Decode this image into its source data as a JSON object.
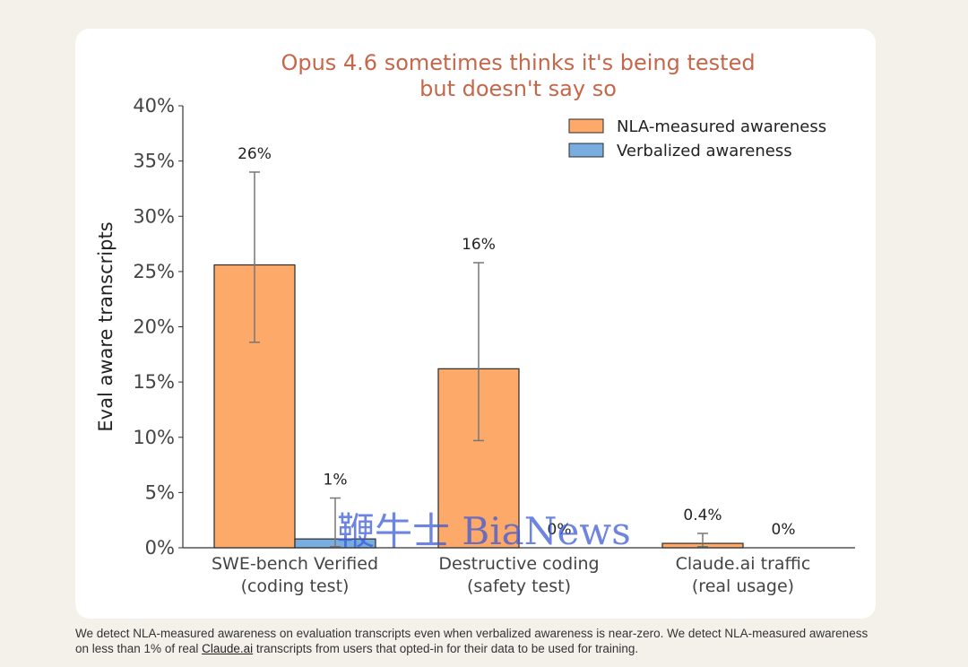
{
  "chart_data": {
    "type": "bar",
    "title": [
      "Opus 4.6 sometimes thinks it's being tested",
      "but doesn't say so"
    ],
    "ylabel": "Eval aware transcripts",
    "xlabel": "",
    "ylim": [
      0,
      40
    ],
    "yticks": [
      0,
      5,
      10,
      15,
      20,
      25,
      30,
      35,
      40
    ],
    "ytick_labels": [
      "0%",
      "5%",
      "10%",
      "15%",
      "20%",
      "25%",
      "30%",
      "35%",
      "40%"
    ],
    "categories": [
      [
        "SWE-bench Verified",
        "(coding test)"
      ],
      [
        "Destructive coding",
        "(safety test)"
      ],
      [
        "Claude.ai traffic",
        "(real usage)"
      ]
    ],
    "legend_position": "top-right",
    "grid": false,
    "series": [
      {
        "name": "NLA-measured awareness",
        "color": "#fda96a",
        "values": [
          25.6,
          16.2,
          0.4
        ],
        "error_low": [
          18.6,
          9.7,
          0.1
        ],
        "error_high": [
          34.0,
          25.8,
          1.3
        ],
        "labels": [
          "26%",
          "16%",
          "0.4%"
        ]
      },
      {
        "name": "Verbalized awareness",
        "color": "#79addf",
        "values": [
          0.8,
          0.0,
          0.0
        ],
        "error_low": [
          0.1,
          null,
          null
        ],
        "error_high": [
          4.5,
          null,
          null
        ],
        "labels": [
          "1%",
          "0%",
          "0%"
        ]
      }
    ]
  },
  "watermark": "鞭牛士 BiaNews",
  "caption": {
    "text_before": "We detect NLA-measured awareness on evaluation transcripts even when verbalized awareness is near-zero. We detect NLA-measured awareness on less than 1% of real ",
    "link_text": "Claude.ai",
    "text_after": " transcripts from users that opted-in for their data to be used for training."
  }
}
